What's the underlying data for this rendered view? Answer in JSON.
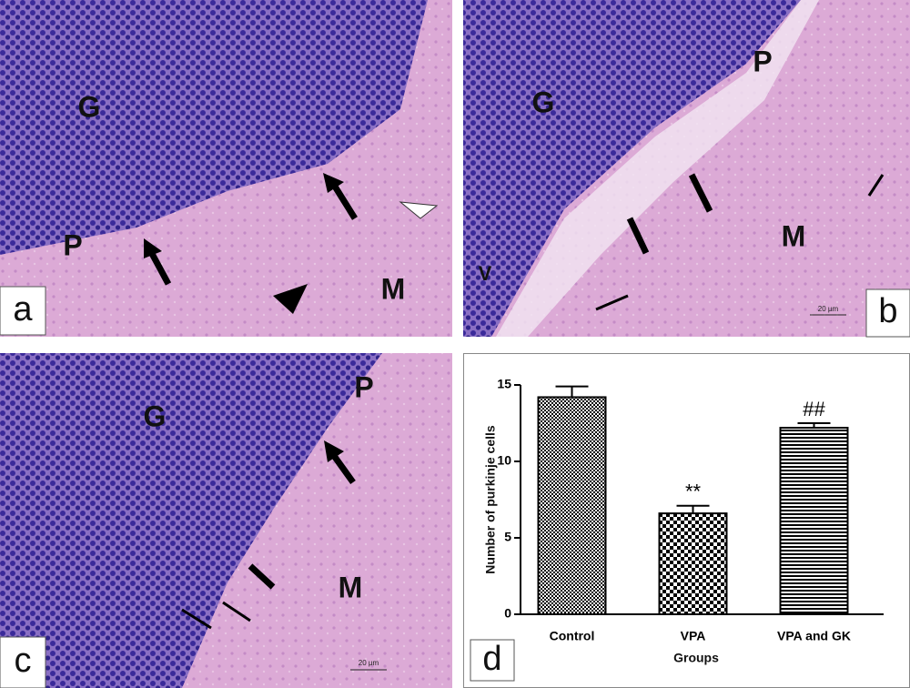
{
  "panels": [
    {
      "letter": "a",
      "labels": [
        "G",
        "P",
        "M"
      ]
    },
    {
      "letter": "b",
      "labels": [
        "G",
        "P",
        "M",
        "V"
      ],
      "scale": "20 µm"
    },
    {
      "letter": "c",
      "labels": [
        "G",
        "P",
        "M"
      ],
      "scale": "20 µm"
    }
  ],
  "chart_data": {
    "type": "bar",
    "letter": "d",
    "categories": [
      "Control",
      "VPA",
      "VPA and GK"
    ],
    "values": [
      14.2,
      6.6,
      12.2
    ],
    "errors": [
      0.7,
      0.5,
      0.3
    ],
    "significance": [
      null,
      "**",
      "##"
    ],
    "x_label": "Groups",
    "y_label": "Number of purkinje cells",
    "color": "#000000",
    "ylim": [
      0,
      15
    ],
    "yticks": [
      0,
      5,
      10,
      15
    ]
  }
}
